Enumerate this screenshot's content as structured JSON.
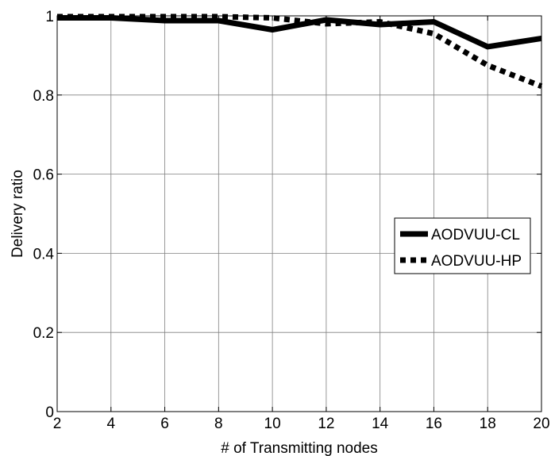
{
  "chart_data": {
    "type": "line",
    "title": "",
    "xlabel": "# of Transmitting nodes",
    "ylabel": "Delivery ratio",
    "xlim": [
      2,
      20
    ],
    "ylim": [
      0,
      1
    ],
    "x_ticks": [
      2,
      4,
      6,
      8,
      10,
      12,
      14,
      16,
      18,
      20
    ],
    "y_ticks": [
      0,
      0.2,
      0.4,
      0.6,
      0.8,
      1
    ],
    "y_tick_labels": [
      "0",
      "0.2",
      "0.4",
      "0.6",
      "0.8",
      "1"
    ],
    "grid": true,
    "legend_position": "right",
    "x": [
      2,
      4,
      6,
      8,
      10,
      12,
      14,
      16,
      18,
      20
    ],
    "series": [
      {
        "name": "AODVUU-CL",
        "style": "solid",
        "color": "#000000",
        "values": [
          0.995,
          0.995,
          0.988,
          0.988,
          0.965,
          0.99,
          0.978,
          0.985,
          0.922,
          0.943
        ]
      },
      {
        "name": "AODVUU-HP",
        "style": "dotted",
        "color": "#000000",
        "values": [
          0.998,
          0.998,
          0.998,
          0.998,
          0.995,
          0.98,
          0.985,
          0.955,
          0.875,
          0.822
        ]
      }
    ]
  }
}
